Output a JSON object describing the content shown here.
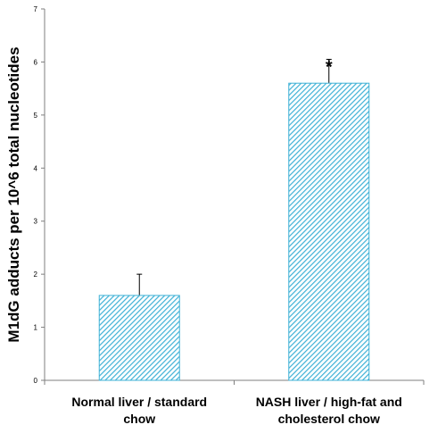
{
  "chart_data": {
    "type": "bar",
    "categories": [
      [
        "Normal liver / standard",
        "chow"
      ],
      [
        "NASH liver / high-fat and",
        "cholesterol chow"
      ]
    ],
    "values": [
      1.6,
      5.6
    ],
    "error_upper": [
      2.0,
      6.05
    ],
    "annotations": [
      "",
      "*"
    ],
    "ylabel": "M1dG adducts per 10^6  total nucleotides",
    "xlabel": "",
    "title": "",
    "ylim": [
      0,
      7
    ],
    "yticks": [
      0,
      1,
      2,
      3,
      4,
      5,
      6,
      7
    ],
    "grid": false,
    "legend": "none",
    "bar_fill": "hatched",
    "bar_color": "#3eb1d6"
  }
}
